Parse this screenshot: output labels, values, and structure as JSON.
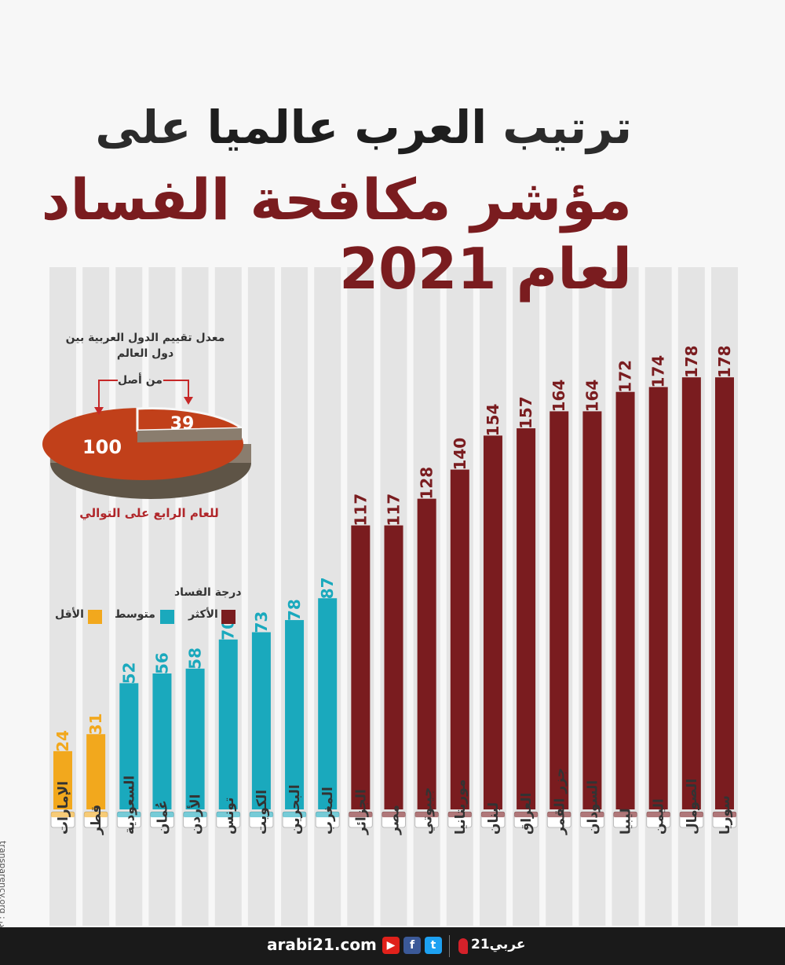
{
  "title": {
    "line1_start": "ترتيب",
    "line1_emphasis": "العرب عالميا",
    "line1_end": "على",
    "line2": "مؤشر مكافحة الفساد",
    "line3": "لعام 2021"
  },
  "pie": {
    "title": "معدل تقييم الدول العربية بين دول العالم",
    "from_label": "من أصل",
    "score": "39",
    "total": "100",
    "note": "للعام الرابع على التوالي",
    "fill_color": "#c1401a",
    "side_color": "#8a7d6e"
  },
  "legend": {
    "title": "درجة الفساد",
    "items": [
      {
        "label": "الأكثر",
        "color": "#7a1c1f"
      },
      {
        "label": "متوسط",
        "color": "#1aa9bd"
      },
      {
        "label": "الأقل",
        "color": "#f2a81d"
      }
    ]
  },
  "chart_data": {
    "type": "bar",
    "title": "ترتيب العرب عالميا على مؤشر مكافحة الفساد لعام 2021",
    "categories": [
      "الإمارات",
      "قطر",
      "السعودية",
      "عُمان",
      "الأردن",
      "تونس",
      "الكويت",
      "البحرين",
      "المغرب",
      "الجزائر",
      "مصر",
      "جيبوتي",
      "موريتانيا",
      "لبنان",
      "العراق",
      "جزر القمر",
      "السودان",
      "ليبيا",
      "اليمن",
      "الصومال",
      "سوريا"
    ],
    "values": [
      24,
      31,
      52,
      56,
      58,
      70,
      73,
      78,
      87,
      117,
      117,
      128,
      140,
      154,
      157,
      164,
      164,
      172,
      174,
      178,
      178
    ],
    "levels": [
      "low",
      "low",
      "mid",
      "mid",
      "mid",
      "mid",
      "mid",
      "mid",
      "mid",
      "high",
      "high",
      "high",
      "high",
      "high",
      "high",
      "high",
      "high",
      "high",
      "high",
      "high",
      "high"
    ],
    "level_colors": {
      "low": "#f2a81d",
      "mid": "#1aa9bd",
      "high": "#7a1c1f"
    },
    "xlabel": "",
    "ylabel": "",
    "ylim": [
      0,
      180
    ],
    "grid": false
  },
  "source": "transparency.org :المصدر",
  "footer": {
    "site": "arabi21.com",
    "brand": "عربي21",
    "social_icons": [
      "youtube-icon",
      "facebook-icon",
      "twitter-icon"
    ]
  }
}
